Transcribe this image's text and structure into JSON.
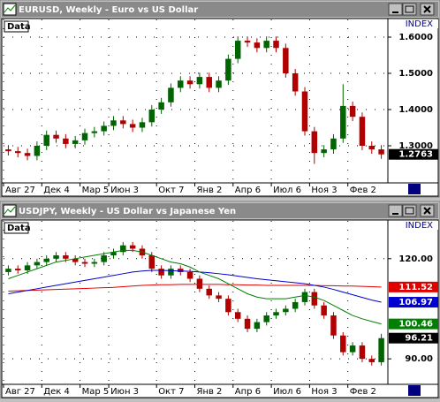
{
  "chart_data": [
    {
      "type": "candlestick",
      "title": "EURUSD, Weekly - Euro vs US Dollar",
      "data_label": "Data",
      "axis_label": "INDEX",
      "up_color": "#006400",
      "down_color": "#b00000",
      "grid": true,
      "categories": [
        "Авг 27",
        null,
        null,
        null,
        "Дек 4",
        null,
        null,
        null,
        "Мар 5",
        null,
        null,
        "Июн 3",
        null,
        null,
        null,
        null,
        "Окт 7",
        null,
        null,
        null,
        "Янв 2",
        null,
        null,
        null,
        "Апр 6",
        null,
        null,
        null,
        "Июл 6",
        null,
        null,
        null,
        "Ноя 3",
        null,
        null,
        null,
        "Фев 2",
        null,
        null,
        null
      ],
      "open": [
        1.29,
        1.285,
        1.28,
        1.272,
        1.3,
        1.33,
        1.32,
        1.305,
        1.315,
        1.335,
        1.34,
        1.355,
        1.37,
        1.36,
        1.35,
        1.365,
        1.4,
        1.42,
        1.46,
        1.48,
        1.47,
        1.49,
        1.46,
        1.48,
        1.54,
        1.59,
        1.585,
        1.57,
        1.59,
        1.57,
        1.5,
        1.45,
        1.34,
        1.28,
        1.29,
        1.32,
        1.41,
        1.38,
        1.3,
        1.29
      ],
      "high": [
        1.302,
        1.297,
        1.292,
        1.312,
        1.342,
        1.342,
        1.332,
        1.327,
        1.347,
        1.352,
        1.367,
        1.382,
        1.382,
        1.372,
        1.377,
        1.412,
        1.432,
        1.472,
        1.492,
        1.492,
        1.502,
        1.502,
        1.492,
        1.552,
        1.602,
        1.602,
        1.597,
        1.602,
        1.602,
        1.582,
        1.512,
        1.462,
        1.352,
        1.302,
        1.332,
        1.47,
        1.422,
        1.392,
        1.312,
        1.302
      ],
      "low": [
        1.273,
        1.268,
        1.26,
        1.26,
        1.288,
        1.308,
        1.293,
        1.293,
        1.303,
        1.323,
        1.328,
        1.343,
        1.348,
        1.338,
        1.338,
        1.353,
        1.388,
        1.408,
        1.448,
        1.458,
        1.458,
        1.448,
        1.448,
        1.468,
        1.528,
        1.573,
        1.558,
        1.558,
        1.558,
        1.488,
        1.438,
        1.328,
        1.25,
        1.268,
        1.278,
        1.308,
        1.368,
        1.288,
        1.278,
        1.264
      ],
      "close": [
        1.285,
        1.28,
        1.272,
        1.3,
        1.33,
        1.32,
        1.305,
        1.315,
        1.335,
        1.34,
        1.355,
        1.37,
        1.36,
        1.35,
        1.365,
        1.4,
        1.42,
        1.46,
        1.48,
        1.47,
        1.49,
        1.46,
        1.48,
        1.54,
        1.59,
        1.585,
        1.57,
        1.59,
        1.57,
        1.5,
        1.45,
        1.34,
        1.28,
        1.29,
        1.32,
        1.41,
        1.38,
        1.3,
        1.29,
        1.2763
      ],
      "series": [],
      "ylim": [
        1.2024,
        1.6439
      ],
      "yticks": [
        {
          "value": 1.3,
          "label": "1.3000"
        },
        {
          "value": 1.4,
          "label": "1.4000"
        },
        {
          "value": 1.5,
          "label": "1.5000"
        },
        {
          "value": 1.6,
          "label": "1.6000"
        }
      ]
    },
    {
      "type": "candlestick",
      "title": "USDJPY, Weekly - US Dollar vs Japanese Yen",
      "data_label": "Data",
      "axis_label": "INDEX",
      "up_color": "#006400",
      "down_color": "#b00000",
      "grid": true,
      "categories": [
        "Авг 27",
        null,
        null,
        null,
        "Дек 4",
        null,
        null,
        null,
        "Мар 5",
        null,
        null,
        "Июн 3",
        null,
        null,
        null,
        null,
        "Окт 7",
        null,
        null,
        null,
        "Янв 2",
        null,
        null,
        null,
        "Апр 6",
        null,
        null,
        null,
        "Июл 6",
        null,
        null,
        null,
        "Ноя 3",
        null,
        null,
        null,
        "Фев 2",
        null,
        null,
        null
      ],
      "open": [
        116,
        117,
        116.5,
        118,
        119,
        120,
        121,
        120,
        119,
        118.5,
        119,
        121,
        122,
        124,
        123,
        121,
        117,
        115,
        117,
        116,
        114,
        111,
        109,
        108,
        104,
        102,
        99,
        101,
        103,
        104,
        105,
        107,
        110,
        106,
        103,
        97,
        92,
        94,
        90,
        89
      ],
      "high": [
        118,
        118,
        119,
        120,
        121,
        122,
        122,
        121,
        120,
        120,
        122,
        123,
        125,
        125,
        124,
        122,
        118,
        118,
        118,
        117,
        115,
        112,
        110,
        109,
        105,
        103,
        102,
        104,
        105,
        106,
        108,
        111,
        111,
        107,
        104,
        98,
        95,
        95,
        91,
        97.5
      ],
      "low": [
        115,
        115.5,
        115.5,
        117,
        118,
        119,
        119,
        118,
        117.5,
        117.5,
        118,
        120,
        121,
        122,
        120,
        116,
        114,
        114,
        115,
        113,
        110,
        108,
        107,
        103,
        101,
        98,
        98,
        100,
        102,
        103,
        104,
        106,
        105,
        102,
        96,
        91,
        91,
        89,
        88,
        88
      ],
      "close": [
        117,
        116.5,
        118,
        119,
        120,
        121,
        120,
        119,
        118.5,
        119,
        121,
        122,
        124,
        123,
        121,
        117,
        115,
        117,
        116,
        114,
        111,
        109,
        108,
        104,
        102,
        99,
        101,
        103,
        104,
        105,
        107,
        110,
        106,
        103,
        97,
        92,
        94,
        90,
        89,
        96.21
      ],
      "series": [
        {
          "color": "#e00000",
          "values": [
            110.3,
            110.4,
            110.5,
            110.6,
            110.7,
            110.8,
            110.9,
            111.0,
            111.1,
            111.2,
            111.3,
            111.4,
            111.6,
            111.8,
            112.0,
            112.1,
            112.2,
            112.2,
            112.3,
            112.3,
            112.3,
            112.3,
            112.3,
            112.2,
            112.2,
            112.1,
            112.1,
            112.0,
            112.0,
            112.0,
            112.0,
            112.0,
            112.0,
            111.9,
            111.9,
            111.8,
            111.8,
            111.7,
            111.6,
            111.52
          ]
        },
        {
          "color": "#0000d0",
          "values": [
            109.5,
            110.0,
            110.5,
            111.0,
            111.5,
            112.0,
            112.5,
            113.0,
            113.5,
            114.0,
            114.5,
            115.0,
            115.5,
            116.0,
            116.3,
            116.5,
            116.5,
            116.4,
            116.3,
            116.2,
            116.0,
            115.8,
            115.5,
            115.2,
            114.8,
            114.4,
            114.0,
            113.7,
            113.4,
            113.1,
            112.8,
            112.5,
            112.0,
            111.5,
            110.8,
            110.0,
            109.2,
            108.4,
            107.6,
            106.97
          ]
        },
        {
          "color": "#008000",
          "values": [
            114,
            115,
            116,
            117,
            118,
            119,
            119.5,
            120,
            120.5,
            121,
            121.5,
            122,
            122.5,
            122.5,
            122,
            121,
            120,
            119,
            118.5,
            117.5,
            116,
            115,
            114,
            112.5,
            111,
            109.5,
            108.5,
            108,
            108,
            108,
            108.5,
            109,
            108.5,
            107.5,
            106,
            104.5,
            103,
            102,
            101.2,
            100.46
          ]
        }
      ],
      "ylim": [
        82.9,
        130.8
      ],
      "yticks": [
        {
          "value": 90,
          "label": "90.00"
        },
        {
          "value": 120,
          "label": "120.00"
        }
      ]
    }
  ]
}
